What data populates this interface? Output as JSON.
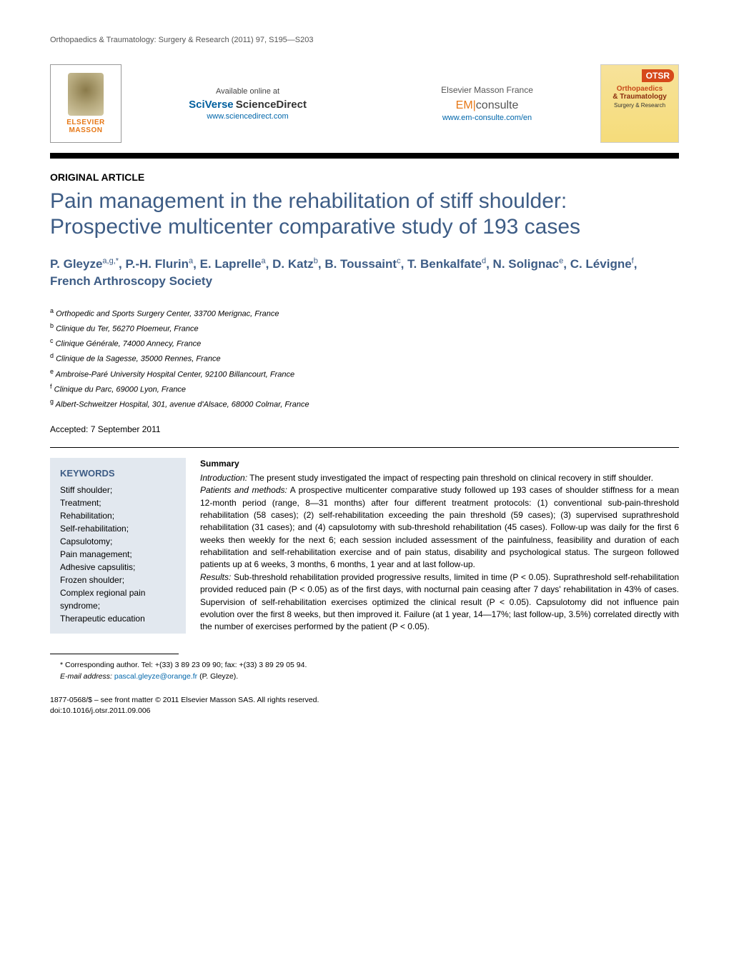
{
  "running_head": "Orthopaedics & Traumatology: Surgery & Research (2011) 97, S195—S203",
  "header": {
    "elsevier_line1": "ELSEVIER",
    "elsevier_line2": "MASSON",
    "available_label": "Available online at",
    "sciverse_top": "SciVerse",
    "sciverse_sub": "ScienceDirect",
    "sciverse_url": "www.sciencedirect.com",
    "masson_label": "Elsevier Masson France",
    "em_prefix": "EM",
    "em_suffix": "consulte",
    "em_url": "www.em-consulte.com/en",
    "otsr_tag": "OTSR",
    "otsr_ortho": "Orthopaedics",
    "otsr_trauma": "& Traumatology",
    "otsr_sr": "Surgery & Research"
  },
  "article_type": "ORIGINAL ARTICLE",
  "title": "Pain management in the rehabilitation of stiff shoulder: Prospective multicenter comparative study of 193 cases",
  "authors_html_parts": {
    "a1": "P. Gleyze",
    "a1s": "a,g,*",
    "a2": "P.-H. Flurin",
    "a2s": "a",
    "a3": "E. Laprelle",
    "a3s": "a",
    "a4": "D. Katz",
    "a4s": "b",
    "a5": "B. Toussaint",
    "a5s": "c",
    "a6": "T. Benkalfate",
    "a6s": "d",
    "a7": "N. Solignac",
    "a7s": "e",
    "a8": "C. Lévigne",
    "a8s": "f",
    "a9": "French Arthroscopy Society"
  },
  "affiliations": {
    "a": "Orthopedic and Sports Surgery Center, 33700 Merignac, France",
    "b": "Clinique du Ter, 56270 Ploemeur, France",
    "c": "Clinique Générale, 74000 Annecy, France",
    "d": "Clinique de la Sagesse, 35000 Rennes, France",
    "e": "Ambroise-Paré University Hospital Center, 92100 Billancourt, France",
    "f": "Clinique du Parc, 69000 Lyon, France",
    "g": "Albert-Schweitzer Hospital, 301, avenue d'Alsace, 68000 Colmar, France"
  },
  "accepted": "Accepted: 7 September 2011",
  "keywords": {
    "head": "KEYWORDS",
    "list": "Stiff shoulder;\nTreatment;\nRehabilitation;\nSelf-rehabilitation;\nCapsulotomy;\nPain management;\nAdhesive capsulitis;\nFrozen shoulder;\nComplex regional pain syndrome;\nTherapeutic education"
  },
  "summary": {
    "head": "Summary",
    "intro_label": "Introduction:",
    "intro": " The present study investigated the impact of respecting pain threshold on clinical recovery in stiff shoulder.",
    "pm_label": "Patients and methods:",
    "pm": " A prospective multicenter comparative study followed up 193 cases of shoulder stiffness for a mean 12-month period (range, 8—31 months) after four different treatment protocols: (1) conventional sub-pain-threshold rehabilitation (58 cases); (2) self-rehabilitation exceeding the pain threshold (59 cases); (3) supervised suprathreshold rehabilitation (31 cases); and (4) capsulotomy with sub-threshold rehabilitation (45 cases). Follow-up was daily for the first 6 weeks then weekly for the next 6; each session included assessment of the painfulness, feasibility and duration of each rehabilitation and self-rehabilitation exercise and of pain status, disability and psychological status. The surgeon followed patients up at 6 weeks, 3 months, 6 months, 1 year and at last follow-up.",
    "res_label": "Results:",
    "res": " Sub-threshold rehabilitation provided progressive results, limited in time (P < 0.05). Suprathreshold self-rehabilitation provided reduced pain (P < 0.05) as of the first days, with nocturnal pain ceasing after 7 days' rehabilitation in 43% of cases. Supervision of self-rehabilitation exercises optimized the clinical result (P < 0.05). Capsulotomy did not influence pain evolution over the first 8 weeks, but then improved it. Failure (at 1 year, 14—17%; last follow-up, 3.5%) correlated directly with the number of exercises performed by the patient (P < 0.05)."
  },
  "footnote": {
    "corr": "* Corresponding author. Tel: +(33) 3 89 23 09 90; fax: +(33) 3 89 29 05 94.",
    "email_label": "E-mail address:",
    "email": "pascal.gleyze@orange.fr",
    "email_who": " (P. Gleyze)."
  },
  "copyright": {
    "line1": "1877-0568/$ – see front matter © 2011 Elsevier Masson SAS. All rights reserved.",
    "line2": "doi:10.1016/j.otsr.2011.09.006"
  },
  "colors": {
    "heading_blue": "#3d5c85",
    "orange": "#e67817",
    "link_blue": "#0066aa",
    "keyword_bg": "#e2e8ef"
  }
}
